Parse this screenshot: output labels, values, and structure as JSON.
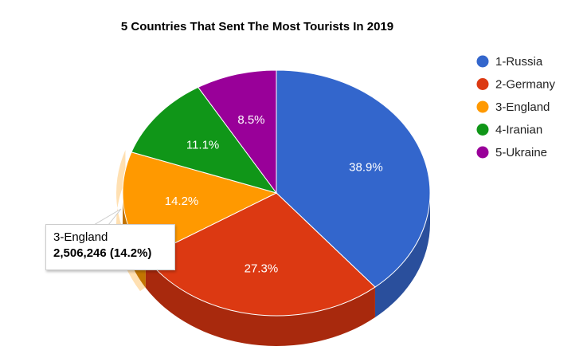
{
  "chart_data": {
    "type": "pie",
    "title": "5 Countries That Sent The Most Tourists In 2019",
    "slices": [
      {
        "label": "1-Russia",
        "percent_label": "38.9%",
        "value": 38.9,
        "color": "#3366cc",
        "side_color": "#2a4f9c"
      },
      {
        "label": "2-Germany",
        "percent_label": "27.3%",
        "value": 27.3,
        "color": "#dc3912",
        "side_color": "#a8290d"
      },
      {
        "label": "3-England",
        "percent_label": "14.2%",
        "value": 14.2,
        "color": "#ff9900",
        "side_color": "#c27400"
      },
      {
        "label": "4-Iranian",
        "percent_label": "11.1%",
        "value": 11.1,
        "color": "#109618",
        "side_color": "#0b6e11"
      },
      {
        "label": "5-Ukraine",
        "percent_label": "8.5%",
        "value": 8.5,
        "color": "#990099",
        "side_color": "#700070"
      }
    ],
    "legend_position": "right",
    "three_d": true,
    "highlighted_slice": "3-England"
  },
  "tooltip": {
    "name": "3-England",
    "value": "2,506,246 (14.2%)"
  }
}
